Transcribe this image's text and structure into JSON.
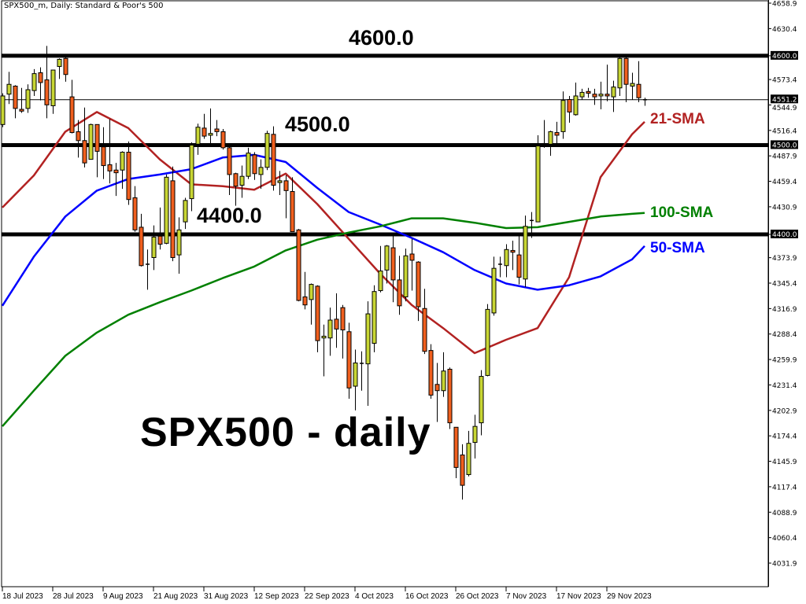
{
  "header": {
    "title": "SPX500_m, Daily:  Standard & Poor's 500"
  },
  "annotations": {
    "level_4600": "4600.0",
    "level_4500": "4500.0",
    "level_4400": "4400.0",
    "chart_caption": "SPX500 - daily",
    "sma21_label": "21-SMA",
    "sma100_label": "100-SMA",
    "sma50_label": "50-SMA"
  },
  "colors": {
    "bull": "#C8D634",
    "bear": "#F05F1E",
    "sma21": "#B22222",
    "sma50": "#0000FF",
    "sma100": "#008000",
    "levels": "#000000"
  },
  "chart_data": {
    "type": "candlestick",
    "ylim": [
      4031.9,
      4658.9
    ],
    "y_ticks": [
      "4658.9",
      "4630.4",
      "4600.0",
      "4573.4",
      "4544.9",
      "4516.4",
      "4487.9",
      "4459.4",
      "4430.9",
      "4400.0",
      "4373.9",
      "4345.4",
      "4316.9",
      "4288.4",
      "4259.9",
      "4231.4",
      "4202.9",
      "4174.4",
      "4145.9",
      "4117.4",
      "4088.9",
      "4060.4",
      "4031.9"
    ],
    "highlighted_prices": [
      "4600.0",
      "4551.2",
      "4500.0",
      "4400.0"
    ],
    "current_price": 4551.2,
    "horizontal_levels": [
      4600,
      4500,
      4400
    ],
    "x_ticks": [
      {
        "label": "18 Jul 2023",
        "date": "2023-07-18"
      },
      {
        "label": "28 Jul 2023",
        "date": "2023-07-28"
      },
      {
        "label": "9 Aug 2023",
        "date": "2023-08-09"
      },
      {
        "label": "21 Aug 2023",
        "date": "2023-08-21"
      },
      {
        "label": "31 Aug 2023",
        "date": "2023-08-31"
      },
      {
        "label": "12 Sep 2023",
        "date": "2023-09-12"
      },
      {
        "label": "22 Sep 2023",
        "date": "2023-09-22"
      },
      {
        "label": "4 Oct 2023",
        "date": "2023-10-04"
      },
      {
        "label": "16 Oct 2023",
        "date": "2023-10-16"
      },
      {
        "label": "26 Oct 2023",
        "date": "2023-10-26"
      },
      {
        "label": "7 Nov 2023",
        "date": "2023-11-07"
      },
      {
        "label": "17 Nov 2023",
        "date": "2023-11-17"
      },
      {
        "label": "29 Nov 2023",
        "date": "2023-11-29"
      }
    ],
    "candles_columns": [
      "date",
      "open",
      "high",
      "low",
      "close"
    ],
    "candles": [
      [
        "2023-07-18",
        4523,
        4558,
        4520,
        4555
      ],
      [
        "2023-07-19",
        4557,
        4582,
        4546,
        4568
      ],
      [
        "2023-07-20",
        4566,
        4567,
        4530,
        4541
      ],
      [
        "2023-07-21",
        4540,
        4564,
        4536,
        4538
      ],
      [
        "2023-07-24",
        4541,
        4568,
        4536,
        4562
      ],
      [
        "2023-07-25",
        4561,
        4585,
        4555,
        4580
      ],
      [
        "2023-07-26",
        4581,
        4587,
        4550,
        4570
      ],
      [
        "2023-07-27",
        4573,
        4611,
        4530,
        4545
      ],
      [
        "2023-07-28",
        4544,
        4584,
        4535,
        4584
      ],
      [
        "2023-07-31",
        4588,
        4597,
        4574,
        4596
      ],
      [
        "2023-08-01",
        4597,
        4598,
        4571,
        4579
      ],
      [
        "2023-08-02",
        4554,
        4573,
        4513,
        4514
      ],
      [
        "2023-08-03",
        4515,
        4528,
        4486,
        4505
      ],
      [
        "2023-08-04",
        4505,
        4542,
        4475,
        4480
      ],
      [
        "2023-08-07",
        4484,
        4524,
        4484,
        4523
      ],
      [
        "2023-08-08",
        4523,
        4523,
        4464,
        4493
      ],
      [
        "2023-08-09",
        4498,
        4520,
        4462,
        4477
      ],
      [
        "2023-08-10",
        4478,
        4529,
        4457,
        4471
      ],
      [
        "2023-08-11",
        4472,
        4480,
        4443,
        4469
      ],
      [
        "2023-08-14",
        4472,
        4493,
        4451,
        4492
      ],
      [
        "2023-08-15",
        4492,
        4504,
        4433,
        4439
      ],
      [
        "2023-08-16",
        4441,
        4454,
        4403,
        4405
      ],
      [
        "2023-08-17",
        4408,
        4423,
        4364,
        4365
      ],
      [
        "2023-08-18",
        4367,
        4383,
        4338,
        4367
      ],
      [
        "2023-08-21",
        4374,
        4410,
        4360,
        4397
      ],
      [
        "2023-08-22",
        4398,
        4430,
        4383,
        4389
      ],
      [
        "2023-08-23",
        4390,
        4467,
        4389,
        4464
      ],
      [
        "2023-08-24",
        4460,
        4476,
        4370,
        4374
      ],
      [
        "2023-08-25",
        4377,
        4419,
        4356,
        4405
      ],
      [
        "2023-08-28",
        4414,
        4441,
        4406,
        4438
      ],
      [
        "2023-08-29",
        4440,
        4503,
        4426,
        4500
      ],
      [
        "2023-08-30",
        4501,
        4524,
        4489,
        4520
      ],
      [
        "2023-08-31",
        4519,
        4535,
        4507,
        4510
      ],
      [
        "2023-09-01",
        4511,
        4541,
        4502,
        4513
      ],
      [
        "2023-09-04",
        4518,
        4528,
        4510,
        4515
      ],
      [
        "2023-09-05",
        4515,
        4518,
        4495,
        4497
      ],
      [
        "2023-09-06",
        4497,
        4498,
        4444,
        4467
      ],
      [
        "2023-09-07",
        4468,
        4469,
        4432,
        4454
      ],
      [
        "2023-09-08",
        4455,
        4477,
        4441,
        4465
      ],
      [
        "2023-09-11",
        4465,
        4497,
        4462,
        4491
      ],
      [
        "2023-09-12",
        4489,
        4492,
        4461,
        4468
      ],
      [
        "2023-09-13",
        4467,
        4484,
        4451,
        4475
      ],
      [
        "2023-09-14",
        4475,
        4516,
        4472,
        4513
      ],
      [
        "2023-09-15",
        4512,
        4521,
        4449,
        4455
      ],
      [
        "2023-09-18",
        4458,
        4471,
        4444,
        4460
      ],
      [
        "2023-09-19",
        4460,
        4466,
        4418,
        4449
      ],
      [
        "2023-09-20",
        4448,
        4464,
        4403,
        4403
      ],
      [
        "2023-09-21",
        4405,
        4406,
        4325,
        4326
      ],
      [
        "2023-09-22",
        4330,
        4358,
        4316,
        4321
      ],
      [
        "2023-09-25",
        4327,
        4345,
        4299,
        4344
      ],
      [
        "2023-09-26",
        4342,
        4343,
        4268,
        4281
      ],
      [
        "2023-09-27",
        4284,
        4299,
        4241,
        4286
      ],
      [
        "2023-09-28",
        4284,
        4318,
        4264,
        4304
      ],
      [
        "2023-09-29",
        4305,
        4334,
        4273,
        4294
      ],
      [
        "2023-10-02",
        4318,
        4321,
        4261,
        4293
      ],
      [
        "2023-10-03",
        4291,
        4301,
        4216,
        4228
      ],
      [
        "2023-10-04",
        4230,
        4271,
        4203,
        4256
      ],
      [
        "2023-10-05",
        4256,
        4269,
        4225,
        4255
      ],
      [
        "2023-10-06",
        4255,
        4325,
        4208,
        4311
      ],
      [
        "2023-10-09",
        4278,
        4343,
        4268,
        4336
      ],
      [
        "2023-10-10",
        4337,
        4387,
        4335,
        4359
      ],
      [
        "2023-10-11",
        4360,
        4388,
        4345,
        4387
      ],
      [
        "2023-10-12",
        4385,
        4398,
        4324,
        4349
      ],
      [
        "2023-10-13",
        4349,
        4376,
        4310,
        4320
      ],
      [
        "2023-10-16",
        4330,
        4384,
        4325,
        4376
      ],
      [
        "2023-10-17",
        4378,
        4395,
        4337,
        4371
      ],
      [
        "2023-10-18",
        4369,
        4370,
        4303,
        4319
      ],
      [
        "2023-10-19",
        4317,
        4339,
        4266,
        4269
      ],
      [
        "2023-10-20",
        4270,
        4277,
        4216,
        4220
      ],
      [
        "2023-10-23",
        4232,
        4256,
        4190,
        4225
      ],
      [
        "2023-10-24",
        4225,
        4268,
        4218,
        4247
      ],
      [
        "2023-10-25",
        4249,
        4251,
        4182,
        4189
      ],
      [
        "2023-10-26",
        4184,
        4184,
        4127,
        4139
      ],
      [
        "2023-10-27",
        4153,
        4165,
        4103,
        4119
      ],
      [
        "2023-10-30",
        4131,
        4180,
        4129,
        4166
      ],
      [
        "2023-10-31",
        4167,
        4198,
        4149,
        4185
      ],
      [
        "2023-11-01",
        4189,
        4248,
        4175,
        4241
      ],
      [
        "2023-11-02",
        4242,
        4322,
        4241,
        4316
      ],
      [
        "2023-11-03",
        4312,
        4375,
        4309,
        4362
      ],
      [
        "2023-11-06",
        4366,
        4375,
        4352,
        4367
      ],
      [
        "2023-11-07",
        4365,
        4389,
        4352,
        4383
      ],
      [
        "2023-11-08",
        4382,
        4393,
        4360,
        4380
      ],
      [
        "2023-11-09",
        4377,
        4398,
        4344,
        4352
      ],
      [
        "2023-11-10",
        4350,
        4421,
        4341,
        4409
      ],
      [
        "2023-11-13",
        4416,
        4425,
        4396,
        4416
      ],
      [
        "2023-11-14",
        4414,
        4511,
        4414,
        4499
      ],
      [
        "2023-11-15",
        4502,
        4528,
        4497,
        4501
      ],
      [
        "2023-11-16",
        4501,
        4516,
        4488,
        4515
      ],
      [
        "2023-11-17",
        4514,
        4526,
        4501,
        4511
      ],
      [
        "2023-11-20",
        4515,
        4560,
        4507,
        4550
      ],
      [
        "2023-11-21",
        4551,
        4555,
        4525,
        4537
      ],
      [
        "2023-11-22",
        4534,
        4570,
        4533,
        4555
      ],
      [
        "2023-11-23",
        4554,
        4563,
        4551,
        4559
      ],
      [
        "2023-11-24",
        4560,
        4564,
        4553,
        4558
      ],
      [
        "2023-11-27",
        4557,
        4563,
        4545,
        4554
      ],
      [
        "2023-11-28",
        4555,
        4571,
        4540,
        4557
      ],
      [
        "2023-11-29",
        4557,
        4590,
        4549,
        4555
      ],
      [
        "2023-11-30",
        4554,
        4572,
        4537,
        4565
      ],
      [
        "2023-12-01",
        4564,
        4600,
        4555,
        4597
      ],
      [
        "2023-12-04",
        4597,
        4600,
        4548,
        4568
      ],
      [
        "2023-12-05",
        4566,
        4581,
        4551,
        4569
      ],
      [
        "2023-12-06",
        4568,
        4594,
        4548,
        4553
      ],
      [
        "2023-12-07",
        4550,
        4553,
        4544,
        4551.2
      ]
    ],
    "series": [
      {
        "name": "21-SMA",
        "color": "#B22222",
        "points": [
          [
            "2023-07-18",
            4430
          ],
          [
            "2023-07-25",
            4466
          ],
          [
            "2023-08-01",
            4515
          ],
          [
            "2023-08-08",
            4537
          ],
          [
            "2023-08-15",
            4519
          ],
          [
            "2023-08-22",
            4484
          ],
          [
            "2023-08-29",
            4456
          ],
          [
            "2023-09-05",
            4454
          ],
          [
            "2023-09-12",
            4450
          ],
          [
            "2023-09-19",
            4468
          ],
          [
            "2023-09-26",
            4434
          ],
          [
            "2023-10-03",
            4395
          ],
          [
            "2023-10-10",
            4356
          ],
          [
            "2023-10-17",
            4321
          ],
          [
            "2023-10-24",
            4295
          ],
          [
            "2023-10-31",
            4267
          ],
          [
            "2023-11-07",
            4282
          ],
          [
            "2023-11-14",
            4295
          ],
          [
            "2023-11-21",
            4352
          ],
          [
            "2023-11-28",
            4464
          ],
          [
            "2023-12-05",
            4512
          ],
          [
            "2023-12-07",
            4526
          ]
        ]
      },
      {
        "name": "50-SMA",
        "color": "#0000FF",
        "points": [
          [
            "2023-07-18",
            4320
          ],
          [
            "2023-07-25",
            4375
          ],
          [
            "2023-08-01",
            4420
          ],
          [
            "2023-08-08",
            4449
          ],
          [
            "2023-08-15",
            4462
          ],
          [
            "2023-08-22",
            4467
          ],
          [
            "2023-08-29",
            4473
          ],
          [
            "2023-09-05",
            4486
          ],
          [
            "2023-09-12",
            4489
          ],
          [
            "2023-09-19",
            4481
          ],
          [
            "2023-09-26",
            4452
          ],
          [
            "2023-10-03",
            4425
          ],
          [
            "2023-10-10",
            4411
          ],
          [
            "2023-10-17",
            4396
          ],
          [
            "2023-10-24",
            4380
          ],
          [
            "2023-10-31",
            4360
          ],
          [
            "2023-11-07",
            4345
          ],
          [
            "2023-11-14",
            4338
          ],
          [
            "2023-11-21",
            4343
          ],
          [
            "2023-11-28",
            4353
          ],
          [
            "2023-12-05",
            4372
          ],
          [
            "2023-12-07",
            4387
          ]
        ]
      },
      {
        "name": "100-SMA",
        "color": "#008000",
        "points": [
          [
            "2023-07-18",
            4185
          ],
          [
            "2023-07-25",
            4225
          ],
          [
            "2023-08-01",
            4264
          ],
          [
            "2023-08-08",
            4290
          ],
          [
            "2023-08-15",
            4310
          ],
          [
            "2023-08-22",
            4324
          ],
          [
            "2023-08-29",
            4337
          ],
          [
            "2023-09-05",
            4351
          ],
          [
            "2023-09-12",
            4364
          ],
          [
            "2023-09-19",
            4382
          ],
          [
            "2023-09-26",
            4394
          ],
          [
            "2023-10-03",
            4402
          ],
          [
            "2023-10-10",
            4409
          ],
          [
            "2023-10-17",
            4418
          ],
          [
            "2023-10-24",
            4418
          ],
          [
            "2023-10-31",
            4413
          ],
          [
            "2023-11-07",
            4407
          ],
          [
            "2023-11-14",
            4408
          ],
          [
            "2023-11-21",
            4414
          ],
          [
            "2023-11-28",
            4420
          ],
          [
            "2023-12-05",
            4423
          ],
          [
            "2023-12-07",
            4424
          ]
        ]
      }
    ]
  }
}
